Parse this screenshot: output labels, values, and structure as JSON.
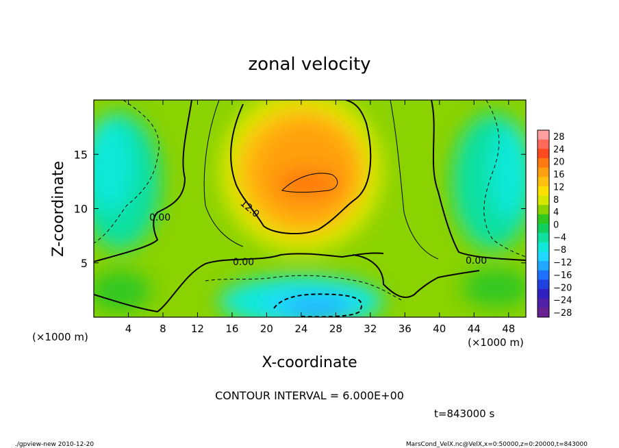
{
  "chart_data": {
    "type": "heatmap",
    "title": "zonal velocity",
    "xlabel": "X-coordinate",
    "ylabel": "Z-coordinate",
    "x_unit_left": "(×1000 m)",
    "x_unit_right": "(×1000 m)",
    "xlim": [
      0,
      50
    ],
    "ylim": [
      0,
      20
    ],
    "x_ticks": [
      4,
      8,
      12,
      16,
      20,
      24,
      28,
      32,
      36,
      40,
      44,
      48
    ],
    "y_ticks": [
      5,
      10,
      15
    ],
    "colorbar": {
      "labels": [
        28,
        24,
        20,
        16,
        12,
        8,
        4,
        0,
        -4,
        -8,
        -12,
        -16,
        -20,
        -24,
        -28
      ],
      "colors": [
        "#ffa0a0",
        "#ff6a5a",
        "#ff4a20",
        "#ff7a10",
        "#ffa010",
        "#ffc010",
        "#ffe000",
        "#d6e800",
        "#8ad200",
        "#30c820",
        "#10d060",
        "#10e0a0",
        "#10e8d8",
        "#20d8ff",
        "#20a8ff",
        "#2070ff",
        "#2040e0",
        "#3020c0",
        "#5020a8",
        "#6a2090"
      ]
    },
    "contour_labels": [
      "0.00",
      "12.0",
      "0.00",
      "0.00"
    ],
    "contour_interval": "CONTOUR INTERVAL = 6.000E+00",
    "time_label": "t=843000 s"
  },
  "footer": {
    "left": "./gpview-new  2010-12-20",
    "right": "MarsCond_VelX.nc@VelX,x=0:50000,z=0:20000,t=843000"
  }
}
